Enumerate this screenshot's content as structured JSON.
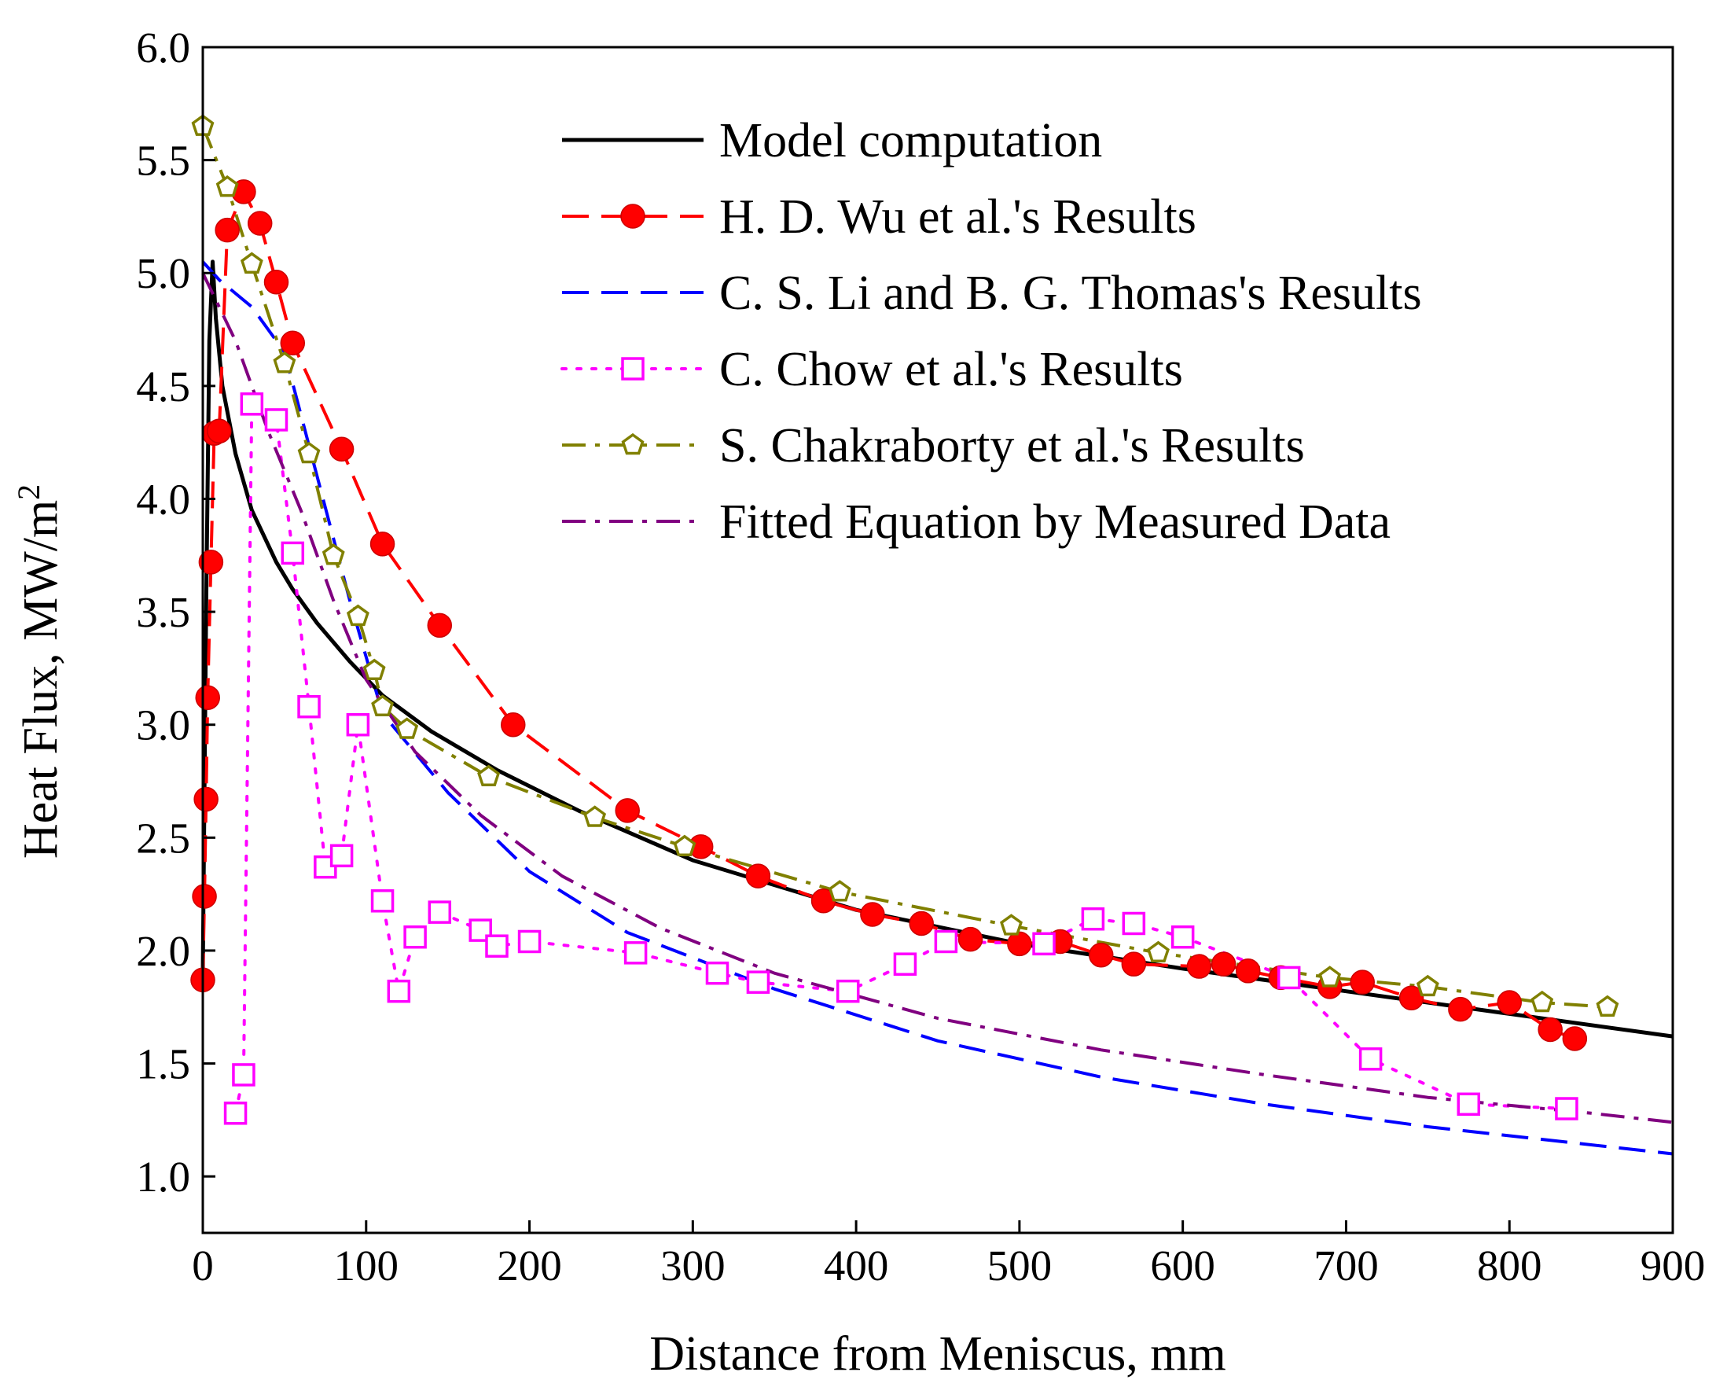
{
  "chart_data": {
    "type": "line",
    "title": "",
    "xlabel": "Distance from Meniscus, mm",
    "ylabel_main": "Heat Flux, MW/m",
    "ylabel_sup": "2",
    "xlim": [
      0,
      900
    ],
    "ylim": [
      0.75,
      6.0
    ],
    "xticks": [
      0,
      100,
      200,
      300,
      400,
      500,
      600,
      700,
      800,
      900
    ],
    "yticks": [
      1.0,
      1.5,
      2.0,
      2.5,
      3.0,
      3.5,
      4.0,
      4.5,
      5.0,
      5.5,
      6.0
    ],
    "xtick_labels": [
      "0",
      "100",
      "200",
      "300",
      "400",
      "500",
      "600",
      "700",
      "800",
      "900"
    ],
    "ytick_labels": [
      "1.0",
      "1.5",
      "2.0",
      "2.5",
      "3.0",
      "3.5",
      "4.0",
      "4.5",
      "5.0",
      "5.5",
      "6.0"
    ],
    "legend_position": "top-right",
    "series": [
      {
        "name": "Model computation",
        "color": "#000000",
        "dash": "solid",
        "marker": "none",
        "x": [
          0,
          2,
          4,
          6,
          8,
          12,
          20,
          30,
          45,
          55,
          70,
          90,
          110,
          140,
          180,
          230,
          300,
          400,
          500,
          600,
          700,
          800,
          900
        ],
        "y": [
          1.9,
          3.5,
          4.7,
          5.05,
          4.8,
          4.5,
          4.2,
          3.95,
          3.72,
          3.6,
          3.45,
          3.28,
          3.13,
          2.97,
          2.8,
          2.62,
          2.4,
          2.18,
          2.03,
          1.92,
          1.82,
          1.72,
          1.62
        ]
      },
      {
        "name": "H. D. Wu et al.'s Results",
        "color": "#ff0000",
        "dash": "dashed",
        "marker": "circle-filled",
        "x": [
          0,
          1,
          2,
          3,
          5,
          7,
          10,
          15,
          25,
          35,
          45,
          55,
          85,
          110,
          145,
          190,
          260,
          305,
          340,
          380,
          410,
          440,
          470,
          500,
          525,
          550,
          570,
          610,
          625,
          640,
          660,
          690,
          710,
          740,
          770,
          800,
          825,
          840
        ],
        "y": [
          1.87,
          2.24,
          2.67,
          3.12,
          3.72,
          4.29,
          4.3,
          5.19,
          5.36,
          5.22,
          4.96,
          4.69,
          4.22,
          3.8,
          3.44,
          3.0,
          2.62,
          2.46,
          2.33,
          2.22,
          2.16,
          2.12,
          2.05,
          2.03,
          2.04,
          1.98,
          1.94,
          1.93,
          1.94,
          1.91,
          1.88,
          1.84,
          1.86,
          1.79,
          1.74,
          1.77,
          1.65,
          1.61
        ]
      },
      {
        "name": "C. S. Li and B. G. Thomas's Results",
        "color": "#0000ff",
        "dash": "dashed",
        "marker": "none",
        "x": [
          0,
          10,
          30,
          50,
          70,
          90,
          110,
          150,
          200,
          260,
          350,
          450,
          550,
          650,
          750,
          900
        ],
        "y": [
          5.05,
          4.97,
          4.85,
          4.65,
          4.1,
          3.55,
          3.05,
          2.7,
          2.35,
          2.08,
          1.83,
          1.6,
          1.44,
          1.32,
          1.22,
          1.1
        ]
      },
      {
        "name": "C. Chow et al.'s Results",
        "color": "#ff00ff",
        "dash": "dotted",
        "marker": "square-open",
        "x": [
          20,
          25,
          30,
          45,
          55,
          65,
          75,
          85,
          95,
          110,
          120,
          130,
          145,
          170,
          180,
          200,
          265,
          315,
          340,
          395,
          430,
          455,
          515,
          545,
          570,
          600,
          665,
          715,
          775,
          835
        ],
        "y": [
          1.28,
          1.45,
          4.42,
          4.35,
          3.76,
          3.08,
          2.37,
          2.42,
          3.0,
          2.22,
          1.82,
          2.06,
          2.17,
          2.09,
          2.02,
          2.04,
          1.99,
          1.9,
          1.86,
          1.82,
          1.94,
          2.04,
          2.03,
          2.14,
          2.12,
          2.06,
          1.88,
          1.52,
          1.32,
          1.3
        ]
      },
      {
        "name": "S. Chakraborty et al.'s Results",
        "color": "#808000",
        "dash": "dash-dot",
        "marker": "pentagon-open",
        "x": [
          0,
          15,
          30,
          50,
          65,
          80,
          95,
          105,
          110,
          125,
          175,
          240,
          295,
          390,
          495,
          585,
          690,
          750,
          820,
          860
        ],
        "y": [
          5.65,
          5.38,
          5.04,
          4.6,
          4.2,
          3.75,
          3.48,
          3.24,
          3.08,
          2.98,
          2.77,
          2.59,
          2.46,
          2.26,
          2.11,
          1.99,
          1.88,
          1.84,
          1.77,
          1.75
        ]
      },
      {
        "name": "Fitted Equation by Measured Data",
        "color": "#800080",
        "dash": "dash-dot",
        "marker": "none",
        "x": [
          0,
          20,
          40,
          60,
          80,
          100,
          130,
          170,
          220,
          280,
          350,
          450,
          550,
          650,
          750,
          850,
          900
        ],
        "y": [
          5.0,
          4.7,
          4.3,
          3.95,
          3.55,
          3.2,
          2.88,
          2.6,
          2.33,
          2.1,
          1.9,
          1.7,
          1.56,
          1.45,
          1.35,
          1.28,
          1.24
        ]
      }
    ]
  }
}
